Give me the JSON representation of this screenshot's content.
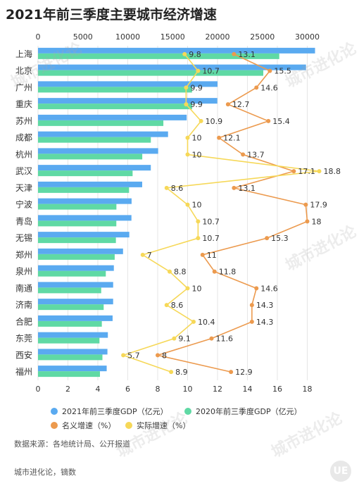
{
  "title": "2021年前三季度主要城市经济增速",
  "source": "数据来源：各地统计局、公开报道",
  "credit": "城市进化论，镝数",
  "watermark": {
    "text": "城市进化论",
    "subtext": "URBAN EVOLUTION"
  },
  "colors": {
    "gdp2021": "#5aaaf0",
    "gdp2020": "#5fd9a4",
    "nominal": "#ec9a4e",
    "real": "#f6d858"
  },
  "chart_data": {
    "type": "bar",
    "categories": [
      "上海",
      "北京",
      "广州",
      "重庆",
      "苏州",
      "成都",
      "杭州",
      "武汉",
      "天津",
      "宁波",
      "青岛",
      "无锡",
      "郑州",
      "泉州",
      "南通",
      "济南",
      "合肥",
      "东莞",
      "西安",
      "福州"
    ],
    "top_axis": {
      "ticks": [
        "0",
        "5000",
        "10000",
        "15000",
        "20000",
        "25000",
        "30000"
      ],
      "range": [
        0,
        32000
      ]
    },
    "bottom_axis": {
      "ticks": [
        "0",
        "2",
        "4",
        "6",
        "8",
        "10",
        "12",
        "14",
        "16",
        "18"
      ],
      "range": [
        0,
        19.2
      ]
    },
    "series": [
      {
        "name": "2021年前三季度GDP（亿元）",
        "type": "bar",
        "values": [
          30867,
          29859,
          20000,
          19977,
          16567,
          14488,
          13387,
          12567,
          11607,
          10426,
          10410,
          10171,
          9474,
          8450,
          8373,
          8370,
          8311,
          7783,
          7734,
          7652
        ]
      },
      {
        "name": "2020年前三季度GDP（亿元）",
        "type": "bar",
        "values": [
          26881,
          25100,
          17161,
          17164,
          13966,
          12571,
          11616,
          10539,
          10144,
          8735,
          8726,
          8679,
          8543,
          7553,
          7040,
          7316,
          7110,
          6848,
          7178,
          6902
        ]
      },
      {
        "name": "名义增速（%）",
        "type": "line",
        "values": [
          13.1,
          15.5,
          14.6,
          12.7,
          15.4,
          12.1,
          13.7,
          17.1,
          13.1,
          17.9,
          18,
          15.3,
          11,
          11.8,
          14.6,
          14.3,
          14.3,
          11.6,
          8,
          12.9
        ]
      },
      {
        "name": "实际增速（%）",
        "type": "line",
        "values": [
          9.8,
          10.7,
          9.9,
          9.9,
          10.9,
          10,
          10,
          18.8,
          8.6,
          10,
          10.7,
          10.7,
          7,
          8.8,
          10,
          8.6,
          10.4,
          9.1,
          5.7,
          8.9
        ]
      }
    ]
  }
}
